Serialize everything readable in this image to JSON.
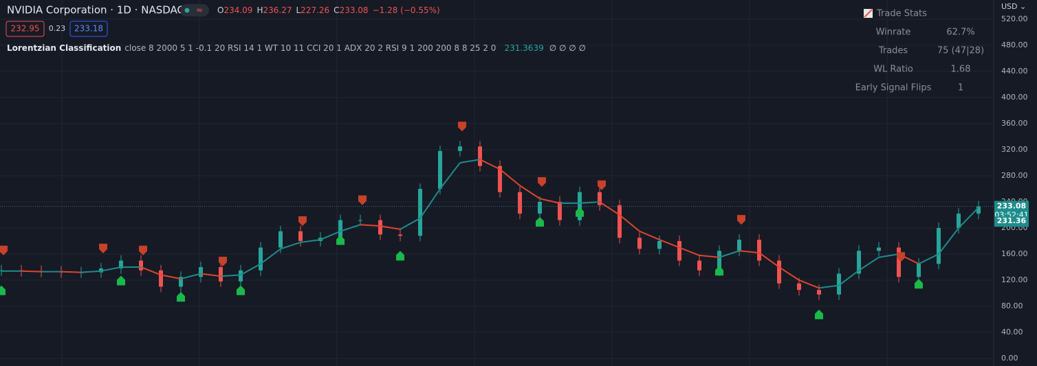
{
  "header": {
    "symbol": "NVIDIA Corporation · 1D · NASDAQ",
    "ohlc": [
      {
        "key": "O",
        "value": "234.09"
      },
      {
        "key": "H",
        "value": "236.27"
      },
      {
        "key": "L",
        "value": "227.26"
      },
      {
        "key": "C",
        "value": "233.08"
      }
    ],
    "change": "−1.28 (−0.55%)",
    "bid": "232.95",
    "spread": "0.23",
    "ask": "233.18"
  },
  "indicator": {
    "name": "Lorentzian Classification",
    "params": "close 8 2000 5 1 -0.1 20 RSI 14 1 WT 10 11 CCI 20 1 ADX 20 2 RSI 9 1 200 200 8 8 25 2 0",
    "value": "231.3639",
    "extras": "∅ ∅ ∅ ∅"
  },
  "trade_stats": {
    "title": "Trade Stats",
    "rows": [
      [
        "Winrate",
        "62.7%"
      ],
      [
        "Trades",
        "75 (47|28)"
      ],
      [
        "WL Ratio",
        "1.68"
      ],
      [
        "Early Signal Flips",
        "1"
      ]
    ]
  },
  "chart_data": {
    "type": "candle",
    "currency": "USD ⌄",
    "ylim": [
      -11.6,
      549.5
    ],
    "yticks": [
      {
        "value": 0,
        "label": "0.00"
      },
      {
        "value": 40,
        "label": "40.00"
      },
      {
        "value": 80,
        "label": "80.00"
      },
      {
        "value": 120,
        "label": "120.00"
      },
      {
        "value": 160,
        "label": "160.00"
      },
      {
        "value": 200,
        "label": "200.00"
      },
      {
        "value": 240,
        "label": "240.00"
      },
      {
        "value": 280,
        "label": "280.00"
      },
      {
        "value": 320,
        "label": "320.00"
      },
      {
        "value": 360,
        "label": "360.00"
      },
      {
        "value": 400,
        "label": "400.00"
      },
      {
        "value": 440,
        "label": "440.00"
      },
      {
        "value": 480,
        "label": "480.00"
      },
      {
        "value": 520,
        "label": "520.00"
      }
    ],
    "grid": true,
    "series": [
      {
        "up_color": "#26a69a",
        "down_color": "#ef5350",
        "values": [
          135,
          134,
          133,
          132,
          132,
          138,
          150,
          135,
          110,
          125,
          140,
          118,
          135,
          170,
          195,
          180,
          185,
          212,
          212,
          190,
          188,
          260,
          318,
          325,
          295,
          255,
          222,
          240,
          212,
          255,
          235,
          185,
          168,
          180,
          150,
          135,
          165,
          182,
          150,
          115,
          105,
          98,
          130,
          165,
          170,
          125,
          145,
          200,
          222,
          233.08
        ]
      },
      {
        "up_color": "#1e8c8c",
        "down_color": "#e0452e",
        "values": [
          134,
          134,
          133,
          133,
          132,
          134,
          140,
          140,
          128,
          122,
          130,
          126,
          128,
          145,
          168,
          178,
          182,
          195,
          205,
          203,
          198,
          215,
          260,
          300,
          305,
          290,
          265,
          245,
          238,
          238,
          240,
          220,
          195,
          182,
          170,
          158,
          155,
          165,
          162,
          140,
          120,
          108,
          112,
          135,
          155,
          160,
          145,
          160,
          200,
          231.36
        ]
      }
    ],
    "buy_signals": [
      0,
      6,
      9,
      12,
      17,
      20,
      27,
      29,
      36,
      41,
      46
    ],
    "sell_signals": [
      0,
      5,
      7,
      11,
      15,
      18,
      23,
      27,
      30,
      37,
      45
    ],
    "buy_color": "#1bb84a",
    "sell_color": "#c8412a",
    "last_price": 233.08,
    "countdown": "03:52:41",
    "kernel_last": 231.36
  }
}
